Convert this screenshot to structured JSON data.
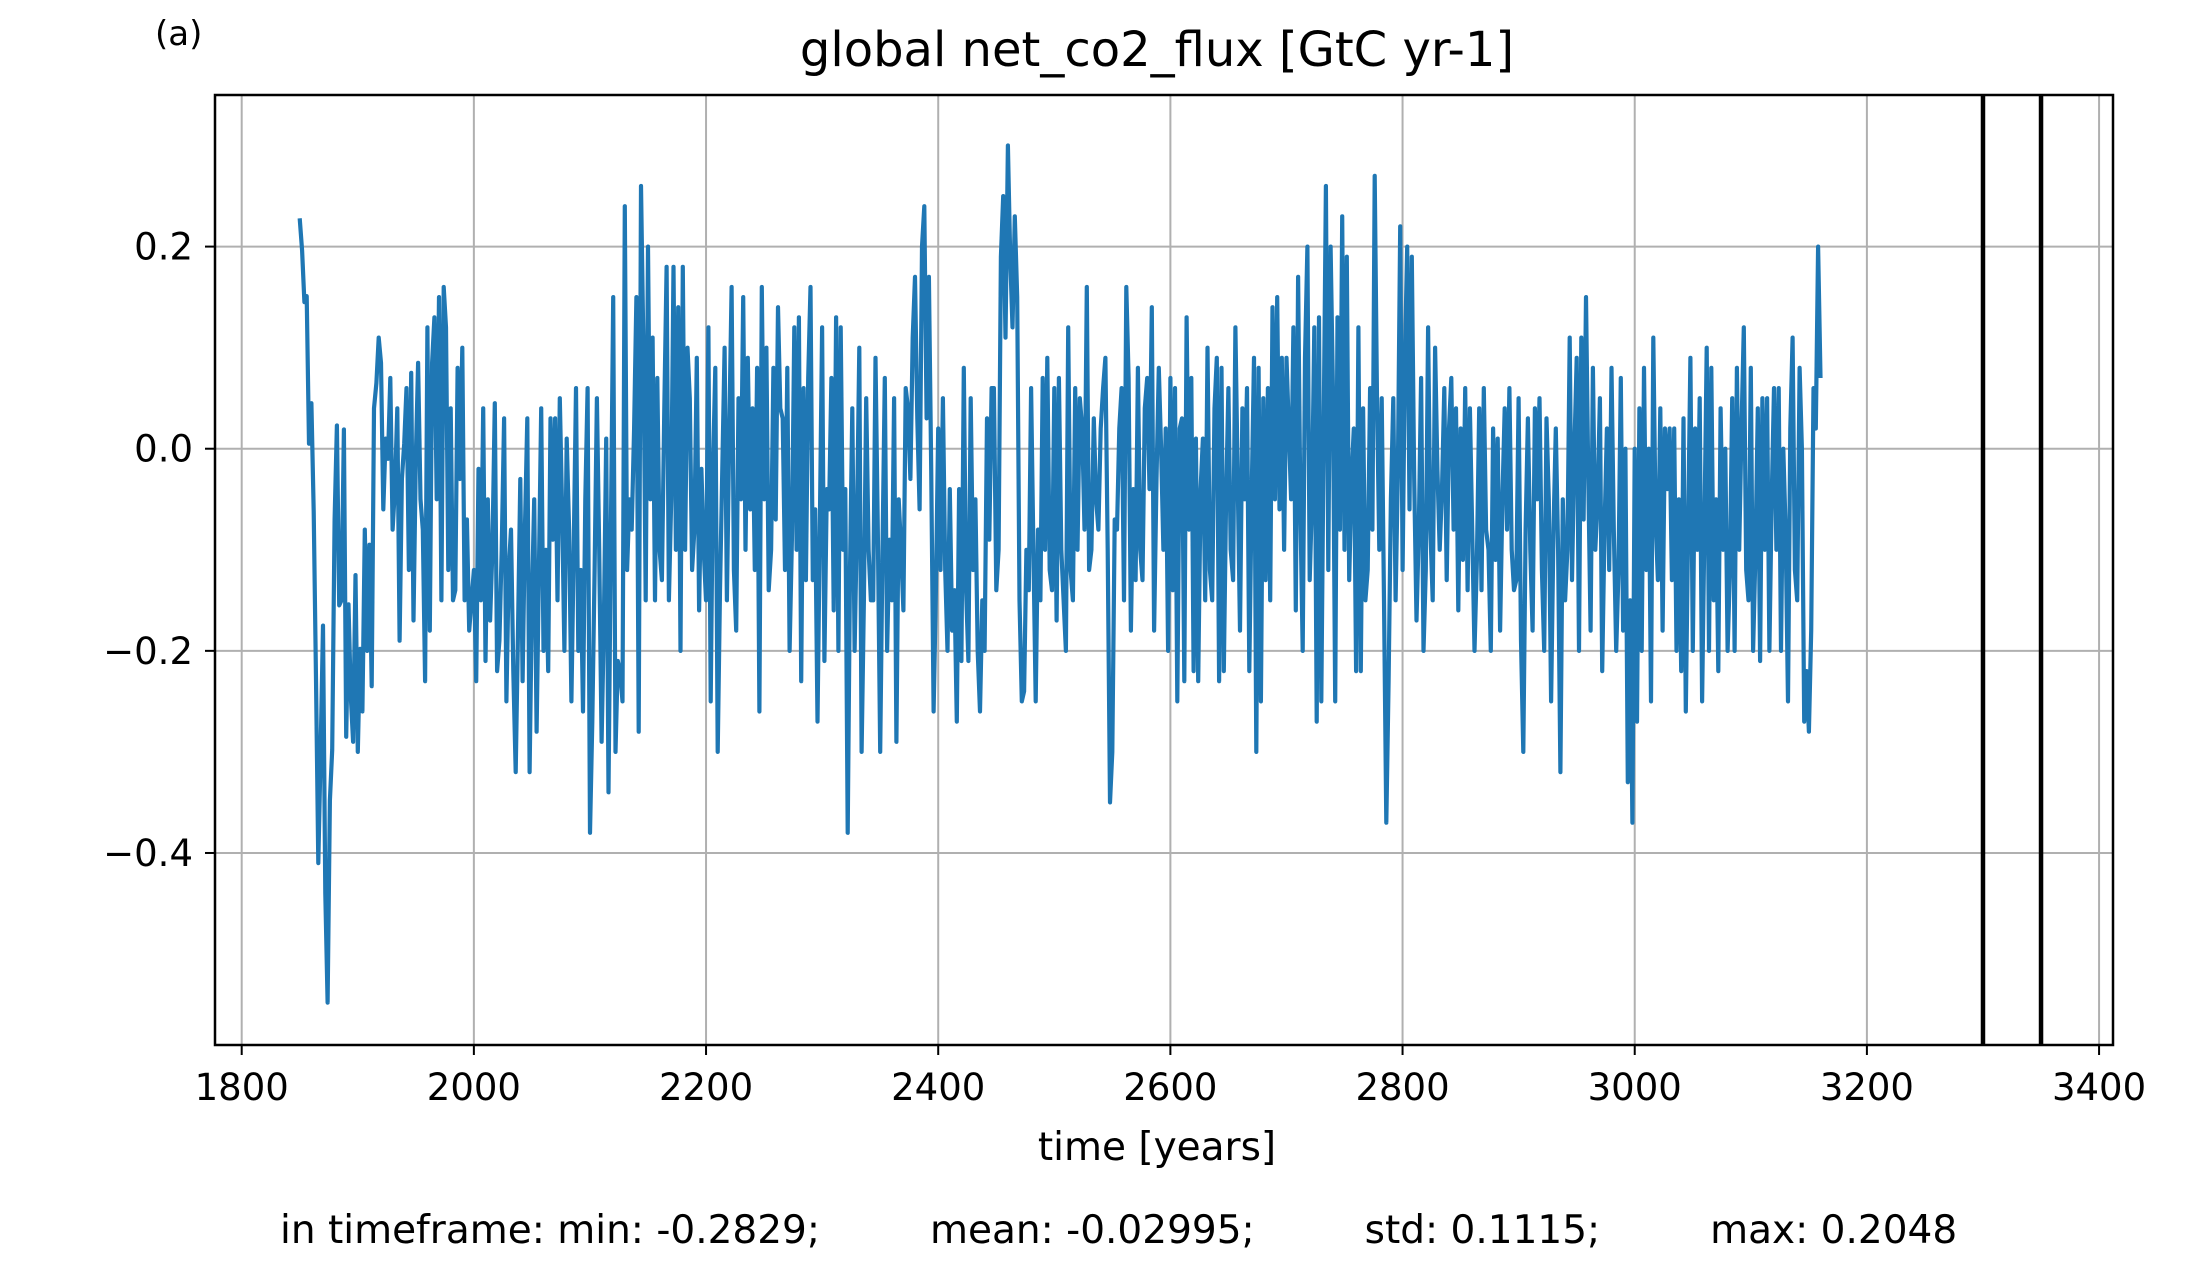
{
  "panel_label": "(a)",
  "stats": {
    "min": "in timeframe: min: -0.2829;",
    "mean": "mean: -0.02995;",
    "std": "std: 0.1115;",
    "max": "max: 0.2048"
  },
  "colors": {
    "line": "#1f77b4",
    "grid": "#b0b0b0",
    "marker": "#000000"
  },
  "chart_data": {
    "type": "line",
    "title": "global net_co2_flux [GtC yr-1]",
    "xlabel": "time [years]",
    "ylabel": "",
    "xlim": [
      1777,
      3412
    ],
    "ylim": [
      -0.59,
      0.35
    ],
    "xticks": [
      1800,
      2000,
      2200,
      2400,
      2600,
      2800,
      3000,
      3200,
      3400
    ],
    "xtick_labels": [
      "1800",
      "2000",
      "2200",
      "2400",
      "2600",
      "2800",
      "3000",
      "3200",
      "3400"
    ],
    "yticks": [
      0.2,
      0.0,
      -0.2,
      -0.4
    ],
    "ytick_labels": [
      "0.2",
      "0.0",
      "−0.2",
      "−0.4"
    ],
    "grid": true,
    "vlines": [
      3300,
      3350
    ],
    "series": [
      {
        "x_start": 1850,
        "x_step": 2,
        "values": [
          0.228,
          0.196,
          0.145,
          0.151,
          0.005,
          0.045,
          -0.062,
          -0.228,
          -0.41,
          -0.301,
          -0.175,
          -0.44,
          -0.548,
          -0.348,
          -0.298,
          -0.07,
          0.023,
          -0.155,
          -0.15,
          0.019,
          -0.285,
          -0.154,
          -0.245,
          -0.29,
          -0.125,
          -0.3,
          -0.198,
          -0.26,
          -0.08,
          -0.2,
          -0.095,
          -0.235,
          0.04,
          0.065,
          0.11,
          0.085,
          -0.06,
          0.01,
          -0.01,
          0.07,
          -0.08,
          -0.04,
          0.04,
          -0.19,
          -0.03,
          0.005,
          0.06,
          -0.12,
          0.075,
          -0.17,
          -0.01,
          0.085,
          -0.05,
          -0.08,
          -0.23,
          0.12,
          -0.18,
          0.085,
          0.13,
          -0.05,
          0.15,
          -0.15,
          0.16,
          0.12,
          -0.12,
          0.04,
          -0.15,
          -0.14,
          0.08,
          -0.03,
          0.1,
          -0.15,
          -0.07,
          -0.18,
          -0.15,
          -0.12,
          -0.23,
          -0.02,
          -0.15,
          0.04,
          -0.21,
          -0.05,
          -0.17,
          -0.1,
          0.045,
          -0.22,
          -0.19,
          -0.1,
          0.03,
          -0.25,
          -0.12,
          -0.08,
          -0.22,
          -0.32,
          -0.18,
          -0.03,
          -0.23,
          -0.08,
          0.03,
          -0.32,
          -0.15,
          -0.05,
          -0.28,
          -0.12,
          0.04,
          -0.2,
          -0.1,
          -0.22,
          0.03,
          -0.09,
          0.03,
          -0.15,
          0.05,
          -0.06,
          -0.2,
          0.01,
          -0.08,
          -0.25,
          -0.1,
          0.06,
          -0.2,
          -0.12,
          -0.26,
          -0.05,
          0.06,
          -0.38,
          -0.27,
          -0.12,
          0.05,
          -0.1,
          -0.29,
          -0.17,
          0.01,
          -0.34,
          -0.08,
          0.15,
          -0.3,
          -0.21,
          -0.22,
          -0.25,
          0.24,
          -0.12,
          -0.05,
          -0.08,
          0.02,
          0.15,
          -0.28,
          0.26,
          0.1,
          -0.15,
          0.2,
          -0.05,
          0.11,
          -0.15,
          0.07,
          -0.1,
          -0.13,
          0.04,
          0.18,
          -0.15,
          -0.05,
          0.18,
          -0.1,
          0.14,
          -0.2,
          0.18,
          -0.1,
          0.1,
          0.05,
          -0.12,
          -0.08,
          0.09,
          -0.16,
          -0.02,
          -0.1,
          -0.15,
          0.12,
          -0.25,
          -0.02,
          0.08,
          -0.3,
          -0.14,
          -0.02,
          0.1,
          -0.15,
          0.02,
          0.16,
          -0.12,
          -0.18,
          0.05,
          -0.05,
          0.15,
          -0.1,
          0.09,
          -0.06,
          0.04,
          -0.12,
          0.08,
          -0.26,
          0.16,
          -0.05,
          0.1,
          -0.14,
          -0.1,
          0.08,
          -0.07,
          0.14,
          0.04,
          0.03,
          -0.12,
          0.08,
          -0.2,
          -0.09,
          0.12,
          -0.1,
          0.13,
          -0.23,
          0.06,
          -0.13,
          0.07,
          0.16,
          -0.13,
          -0.06,
          -0.27,
          -0.08,
          0.12,
          -0.21,
          -0.04,
          -0.06,
          0.07,
          -0.16,
          0.13,
          -0.2,
          0.12,
          -0.1,
          -0.04,
          -0.38,
          -0.12,
          0.04,
          -0.2,
          -0.07,
          0.1,
          -0.3,
          -0.15,
          0.05,
          -0.1,
          -0.15,
          -0.15,
          0.09,
          -0.08,
          -0.3,
          -0.1,
          0.07,
          -0.2,
          -0.09,
          -0.15,
          0.05,
          -0.29,
          -0.05,
          -0.1,
          -0.16,
          0.06,
          0.04,
          -0.03,
          0.11,
          0.17,
          0.03,
          -0.06,
          0.2,
          0.24,
          0.03,
          0.17,
          -0.02,
          -0.26,
          -0.14,
          0.02,
          -0.12,
          0.05,
          -0.12,
          -0.2,
          -0.04,
          -0.18,
          -0.14,
          -0.27,
          -0.04,
          -0.21,
          0.08,
          -0.14,
          -0.21,
          0.05,
          -0.12,
          -0.05,
          -0.2,
          -0.26,
          -0.15,
          -0.2,
          0.03,
          -0.09,
          0.06,
          0.06,
          -0.14,
          -0.1,
          0.19,
          0.25,
          0.11,
          0.3,
          0.19,
          0.12,
          0.23,
          0.15,
          -0.15,
          -0.25,
          -0.24,
          -0.1,
          -0.14,
          0.06,
          -0.1,
          -0.25,
          -0.08,
          -0.15,
          0.07,
          -0.1,
          0.09,
          -0.12,
          -0.14,
          0.06,
          -0.17,
          0.07,
          -0.1,
          -0.15,
          -0.2,
          0.12,
          -0.12,
          -0.15,
          0.06,
          -0.1,
          0.05,
          0.02,
          -0.08,
          0.16,
          -0.12,
          -0.1,
          0.03,
          -0.05,
          -0.08,
          0.02,
          0.06,
          0.09,
          -0.1,
          -0.35,
          -0.3,
          -0.07,
          -0.08,
          0.02,
          0.06,
          -0.15,
          0.16,
          0.07,
          -0.18,
          -0.04,
          -0.13,
          0.08,
          -0.1,
          -0.13,
          0.04,
          0.07,
          -0.04,
          0.14,
          -0.18,
          -0.03,
          0.08,
          0.0,
          -0.1,
          0.02,
          -0.2,
          0.07,
          -0.14,
          0.06,
          -0.25,
          0.02,
          0.03,
          -0.23,
          0.13,
          -0.08,
          0.07,
          -0.22,
          0.01,
          -0.23,
          -0.04,
          0.01,
          -0.15,
          0.1,
          -0.12,
          -0.15,
          0.04,
          0.09,
          -0.23,
          0.08,
          -0.22,
          -0.05,
          0.06,
          -0.1,
          -0.13,
          0.12,
          -0.03,
          -0.18,
          0.04,
          -0.05,
          0.06,
          -0.22,
          -0.05,
          0.09,
          -0.3,
          0.08,
          -0.25,
          0.05,
          -0.13,
          0.06,
          -0.15,
          0.14,
          -0.05,
          0.15,
          -0.06,
          0.09,
          -0.1,
          0.09,
          0.02,
          -0.05,
          0.12,
          -0.16,
          0.17,
          -0.06,
          -0.2,
          0.09,
          0.2,
          -0.13,
          -0.05,
          0.12,
          -0.27,
          0.13,
          -0.25,
          0.01,
          0.26,
          -0.12,
          0.2,
          0.06,
          -0.25,
          0.13,
          -0.08,
          0.23,
          -0.1,
          0.19,
          -0.13,
          -0.03,
          0.02,
          -0.22,
          0.12,
          -0.22,
          0.04,
          -0.15,
          -0.12,
          0.06,
          -0.08,
          0.27,
          0.05,
          -0.1,
          0.05,
          -0.15,
          -0.37,
          -0.23,
          -0.05,
          0.05,
          -0.15,
          -0.02,
          0.22,
          -0.12,
          0.09,
          0.2,
          -0.06,
          0.19,
          -0.03,
          -0.17,
          -0.08,
          0.07,
          -0.2,
          -0.12,
          0.12,
          -0.08,
          -0.15,
          0.1,
          -0.02,
          -0.1,
          -0.04,
          0.06,
          -0.13,
          0.02,
          0.07,
          -0.08,
          0.04,
          -0.16,
          0.02,
          -0.11,
          0.06,
          -0.14,
          0.04,
          -0.08,
          -0.2,
          -0.11,
          0.04,
          -0.14,
          0.06,
          -0.08,
          -0.1,
          -0.2,
          0.02,
          -0.11,
          0.01,
          -0.18,
          -0.05,
          0.04,
          -0.08,
          0.06,
          -0.1,
          -0.14,
          -0.13,
          0.05,
          -0.19,
          -0.3,
          -0.08,
          0.03,
          -0.1,
          -0.18,
          0.04,
          -0.05,
          0.05,
          -0.12,
          -0.2,
          0.03,
          -0.05,
          -0.25,
          -0.08,
          0.02,
          -0.1,
          -0.32,
          -0.05,
          -0.15,
          -0.1,
          0.11,
          -0.13,
          0.0,
          0.09,
          -0.2,
          0.11,
          -0.07,
          0.15,
          -0.03,
          -0.18,
          0.08,
          -0.1,
          -0.05,
          0.05,
          -0.22,
          -0.08,
          0.02,
          -0.12,
          0.08,
          -0.08,
          -0.2,
          -0.12,
          0.07,
          -0.18,
          0.0,
          -0.33,
          -0.15,
          -0.37,
          0.0,
          -0.27,
          0.04,
          -0.2,
          0.08,
          -0.12,
          0.0,
          -0.25,
          0.11,
          -0.07,
          -0.13,
          0.04,
          -0.18,
          0.02,
          -0.04,
          0.02,
          -0.13,
          0.02,
          -0.2,
          -0.05,
          -0.22,
          0.03,
          -0.26,
          -0.08,
          0.09,
          -0.2,
          0.02,
          -0.1,
          0.05,
          -0.25,
          -0.08,
          0.1,
          -0.2,
          0.08,
          -0.15,
          -0.05,
          -0.22,
          0.04,
          -0.1,
          0.0,
          -0.2,
          -0.12,
          0.05,
          -0.2,
          0.08,
          -0.1,
          0.02,
          0.12,
          -0.12,
          -0.15,
          0.08,
          -0.2,
          -0.1,
          0.04,
          -0.21,
          0.05,
          -0.1,
          0.05,
          -0.2,
          -0.05,
          0.06,
          -0.1,
          0.06,
          -0.2,
          0.0,
          -0.08,
          -0.25,
          0.02,
          0.11,
          -0.12,
          -0.15,
          0.08,
          0.0,
          -0.27,
          -0.22,
          -0.28,
          -0.18,
          0.06,
          0.02,
          0.2,
          0.07
        ]
      }
    ]
  }
}
